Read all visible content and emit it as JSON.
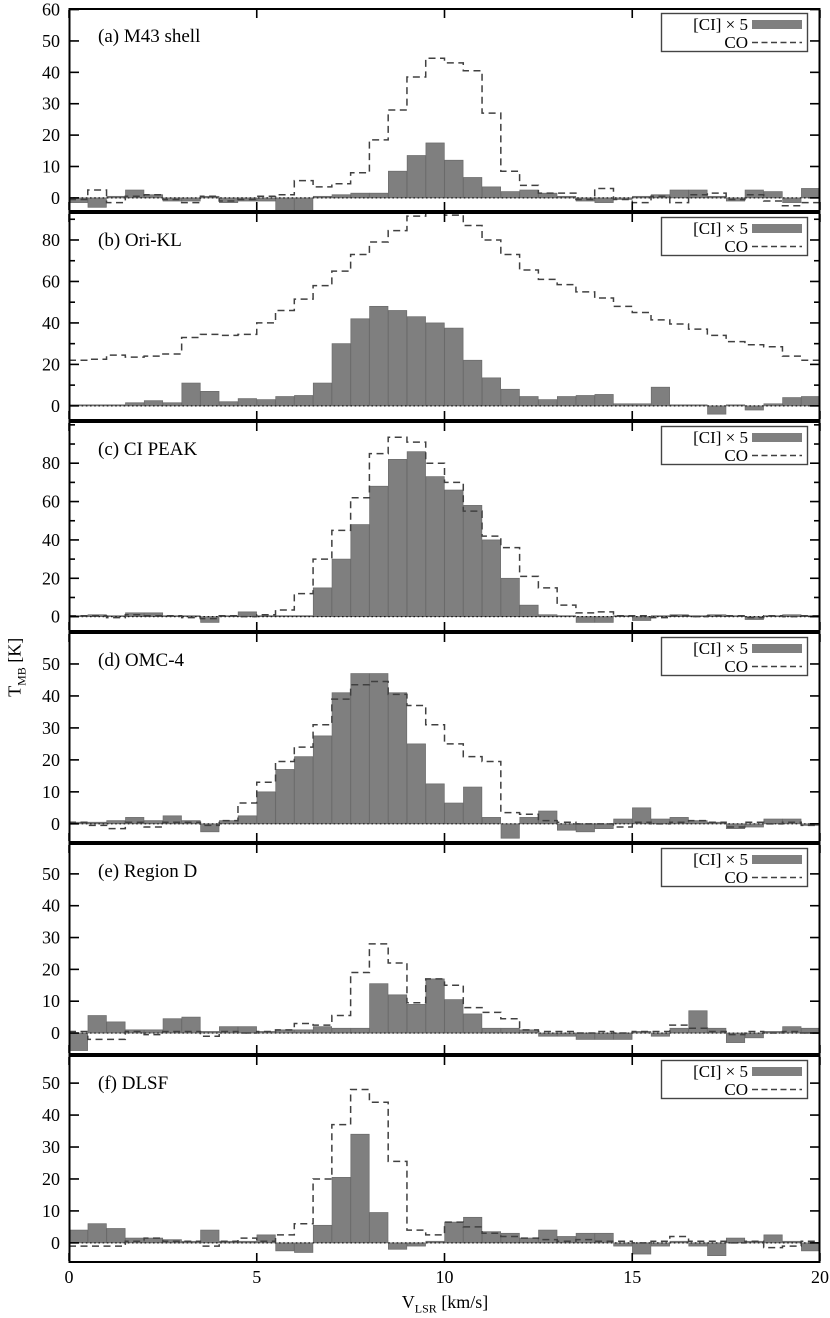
{
  "figure": {
    "x_axis": {
      "title_main": "V",
      "title_sub": "LSR",
      "title_rest": " [km/s]",
      "tick_labels": [
        "0",
        "5",
        "10",
        "15",
        "20"
      ],
      "tick_values": [
        0,
        5,
        10,
        15,
        20
      ],
      "range": [
        0,
        20
      ]
    },
    "y_axis": {
      "title_main": "T",
      "title_sub": "MB",
      "title_rest": " [K]"
    },
    "legend": {
      "ci_label": "[CI] × 5",
      "co_label": "CO"
    },
    "colors": {
      "bar_fill": "#7f7f7f",
      "bar_edge": "#6a6a6a",
      "co_line": "#404040",
      "axis": "#000000",
      "background": "#ffffff"
    }
  },
  "chart_data": [
    {
      "id": "a",
      "type": "bar",
      "title": "(a) M43 shell",
      "x_bin_start": 0,
      "x_bin_width": 0.5,
      "xlim": [
        0,
        20
      ],
      "ylim": [
        -4.5,
        60.5
      ],
      "y_ticks": [
        0,
        10,
        20,
        30,
        40,
        50,
        60
      ],
      "series": [
        {
          "name": "[CI] × 5",
          "type": "bar",
          "values": [
            -1.5,
            -3,
            0.5,
            2.5,
            1,
            -1,
            -1,
            0.5,
            -1.5,
            -1,
            -1,
            -5,
            -5,
            0.5,
            1,
            1.5,
            1.5,
            8.5,
            13.5,
            17.5,
            12,
            6.5,
            3.5,
            2,
            2.5,
            1.5,
            0.5,
            -1,
            -1.5,
            -0.5,
            0.5,
            1,
            2.5,
            2.5,
            0.5,
            -1,
            2.5,
            2,
            -1.5,
            3
          ]
        },
        {
          "name": "CO",
          "type": "step-line",
          "values": [
            -0.5,
            2.5,
            -1.5,
            0.5,
            1,
            -0.5,
            -1.5,
            0.5,
            -1,
            -0.5,
            0.5,
            1,
            5.5,
            3.5,
            4.5,
            8,
            18.5,
            28,
            38.5,
            44.5,
            43,
            40.5,
            27,
            8.5,
            4,
            1.5,
            1.5,
            -0.5,
            3,
            -0.5,
            -1.5,
            0.5,
            -1.5,
            1,
            1.5,
            -0.5,
            1,
            -1,
            -2.5,
            -1.5
          ]
        }
      ]
    },
    {
      "id": "b",
      "type": "bar",
      "title": "(b) Ori-KL",
      "x_bin_start": 0,
      "x_bin_width": 0.5,
      "xlim": [
        0,
        20
      ],
      "ylim": [
        -7.3,
        93.5
      ],
      "y_ticks": [
        0,
        20,
        40,
        60,
        80
      ],
      "series": [
        {
          "name": "[CI] × 5",
          "type": "bar",
          "values": [
            0.5,
            0.5,
            0.5,
            1.5,
            2.5,
            1.5,
            11,
            7,
            2,
            3.5,
            3,
            4.5,
            5,
            11,
            30,
            42,
            48,
            46,
            43,
            40,
            37.5,
            22,
            13.5,
            8,
            4.5,
            3,
            4.5,
            5,
            5.5,
            1,
            1,
            9,
            0.5,
            0.5,
            -4,
            0.5,
            -2,
            1,
            4,
            4.5
          ]
        },
        {
          "name": "CO",
          "type": "step-line",
          "values": [
            22,
            22.5,
            24.5,
            23.5,
            24,
            25,
            33,
            34.5,
            34,
            34.5,
            40,
            46,
            51.5,
            58,
            65,
            73,
            79,
            84.5,
            91.5,
            93.5,
            92,
            87,
            80,
            73,
            65.5,
            61,
            58.5,
            55,
            52,
            48,
            45,
            41.5,
            39.5,
            37,
            34,
            31,
            29.5,
            28.5,
            24,
            22
          ]
        }
      ]
    },
    {
      "id": "c",
      "type": "bar",
      "title": "(c) CI PEAK",
      "x_bin_start": 0,
      "x_bin_width": 0.5,
      "xlim": [
        0,
        20
      ],
      "ylim": [
        -8,
        102
      ],
      "y_ticks": [
        0,
        20,
        40,
        60,
        80
      ],
      "series": [
        {
          "name": "[CI] × 5",
          "type": "bar",
          "values": [
            0.5,
            1,
            0.5,
            2,
            2,
            0.5,
            0.5,
            -3,
            0.5,
            2.5,
            0.5,
            0.5,
            0.5,
            15,
            30,
            48,
            68,
            82,
            86,
            73,
            66,
            58,
            40,
            20,
            6,
            1,
            0.5,
            -3,
            -3,
            0.5,
            -2,
            0.5,
            1,
            0.5,
            1,
            0.5,
            -1.5,
            0.5,
            1,
            0.5
          ]
        },
        {
          "name": "CO",
          "type": "step-line",
          "values": [
            0.5,
            0.5,
            -0.5,
            1,
            0.5,
            0.5,
            -0.5,
            -1,
            0.5,
            0,
            1,
            3.5,
            12,
            30,
            45,
            62,
            85,
            93.5,
            91,
            80,
            70,
            55,
            42,
            36,
            21,
            15,
            6,
            2,
            2.5,
            0.5,
            0.5,
            -0.5,
            0.5,
            0,
            0.5,
            0.5,
            -0.5,
            0.5,
            0,
            0.5
          ]
        }
      ]
    },
    {
      "id": "d",
      "type": "bar",
      "title": "(d) OMC-4",
      "x_bin_start": 0,
      "x_bin_width": 0.5,
      "xlim": [
        0,
        20
      ],
      "ylim": [
        -6,
        60
      ],
      "y_ticks": [
        0,
        10,
        20,
        30,
        40,
        50
      ],
      "series": [
        {
          "name": "[CI] × 5",
          "type": "bar",
          "values": [
            0.5,
            0.5,
            1,
            2,
            1,
            2.5,
            1,
            -2.5,
            1,
            2.5,
            10,
            17,
            21,
            27.5,
            41,
            47,
            47,
            41,
            25,
            12.5,
            6.5,
            11.5,
            2,
            -4.5,
            2,
            4,
            -2,
            -2.5,
            -1.5,
            1.5,
            5,
            1.5,
            2,
            1,
            0.5,
            -1.5,
            -1,
            1.5,
            1.5,
            -0.5
          ]
        },
        {
          "name": "CO",
          "type": "step-line",
          "values": [
            0.5,
            -0.5,
            -1.5,
            0.5,
            -1,
            0.5,
            0.5,
            -0.5,
            1,
            6.5,
            13,
            19.5,
            24,
            31,
            39,
            43.5,
            44.5,
            40.5,
            37,
            31,
            25,
            21,
            19.5,
            3.5,
            3,
            1,
            0.5,
            0,
            0,
            -1,
            0.5,
            0,
            0.5,
            1,
            0.5,
            -1,
            0.5,
            0,
            0.5,
            -0.5
          ]
        }
      ]
    },
    {
      "id": "e",
      "type": "bar",
      "title": "(e) Region D",
      "x_bin_start": 0,
      "x_bin_width": 0.5,
      "xlim": [
        0,
        20
      ],
      "ylim": [
        -6.9,
        59.7
      ],
      "y_ticks": [
        0,
        10,
        20,
        30,
        40,
        50
      ],
      "series": [
        {
          "name": "[CI] × 5",
          "type": "bar",
          "values": [
            -5.5,
            5.5,
            3.5,
            1,
            1,
            4.5,
            5,
            0.5,
            2,
            2,
            0.5,
            1,
            1,
            2,
            1.5,
            1.5,
            15.5,
            12,
            9,
            17,
            10.5,
            6,
            1.5,
            1.5,
            1,
            -1,
            -1,
            -2,
            -2,
            -2,
            0.5,
            -1,
            1.5,
            7,
            1.5,
            -3,
            -1.5,
            0.5,
            2,
            1.5
          ]
        },
        {
          "name": "CO",
          "type": "step-line",
          "values": [
            0.5,
            -2,
            -2,
            0.5,
            -0.5,
            0.5,
            0.5,
            -1,
            0.5,
            0,
            0.5,
            1,
            3,
            2.5,
            5.5,
            19,
            28,
            22,
            9.5,
            17,
            15,
            8,
            6.5,
            4.5,
            1,
            0.5,
            0.5,
            0,
            0.5,
            0,
            0.5,
            0.5,
            2.5,
            1.5,
            0.5,
            -0.5,
            0.5,
            0,
            0.5,
            0
          ]
        }
      ]
    },
    {
      "id": "f",
      "type": "bar",
      "title": "(f) DLSF",
      "x_bin_start": 0,
      "x_bin_width": 0.5,
      "xlim": [
        0,
        20
      ],
      "ylim": [
        -6.3,
        58.8
      ],
      "y_ticks": [
        0,
        10,
        20,
        30,
        40,
        50
      ],
      "series": [
        {
          "name": "[CI] × 5",
          "type": "bar",
          "values": [
            4,
            6,
            4.5,
            1.5,
            1.5,
            1,
            0.5,
            4,
            0.5,
            0.5,
            2.5,
            -2.5,
            -3,
            5.5,
            20.5,
            34,
            9.5,
            -2,
            -1,
            0.5,
            6.5,
            8,
            3.5,
            3,
            1.5,
            4,
            2,
            3,
            3,
            -1,
            -3.5,
            -1,
            0.5,
            -1,
            -4,
            1.5,
            0.5,
            2.5,
            0.5,
            -2.5
          ]
        },
        {
          "name": "CO",
          "type": "step-line",
          "values": [
            -1,
            -1,
            -1,
            0.5,
            1.5,
            0.5,
            0.5,
            -1,
            0.5,
            1.5,
            0.5,
            2.5,
            6,
            20,
            37,
            48,
            44,
            25.5,
            4,
            2.5,
            6.5,
            5,
            3,
            2,
            1.5,
            1,
            0.5,
            1,
            0.5,
            0.5,
            0,
            0.5,
            2,
            0.5,
            0.5,
            0,
            0.5,
            -1.5,
            -1,
            0.5
          ]
        }
      ]
    }
  ]
}
